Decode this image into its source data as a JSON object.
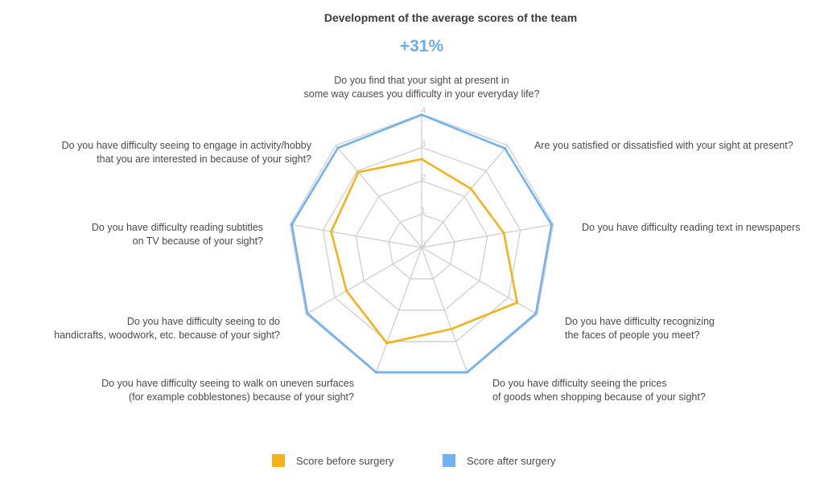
{
  "chart_data": {
    "type": "radar",
    "title": "Development of the average scores of the team",
    "subtitle": "+31%",
    "axis_max": 4,
    "ticks": [
      "0",
      "1",
      "2",
      "3",
      "4"
    ],
    "axes": [
      [
        "Do you find that your sight at present in",
        "some way causes you difficulty in your everyday life?"
      ],
      [
        "Are you satisfied or dissatisfied with your sight at present?"
      ],
      [
        "Do you have difficulty reading text in newspapers"
      ],
      [
        "Do you have difficulty recognizing",
        "the faces of people you meet?"
      ],
      [
        "Do you have difficulty seeing the prices",
        "of goods when shopping because of your sight?"
      ],
      [
        "Do you have difficulty seeing to walk on uneven surfaces",
        "(for example cobblestones) because of your sight?"
      ],
      [
        "Do you have difficulty seeing to do",
        "handicrafts, woodwork, etc. because of your sight?"
      ],
      [
        "Do you have difficulty reading subtitles",
        "on TV because of your sight?"
      ],
      [
        "Do you have difficulty seeing to engage in activity/hobby",
        "that you are interested in because of your sight?"
      ]
    ],
    "series": [
      {
        "name": "Score before surgery",
        "color": "#f5b21b",
        "values": [
          2.65,
          2.3,
          2.5,
          3.3,
          2.6,
          3.05,
          2.6,
          2.75,
          2.95
        ]
      },
      {
        "name": "Score after surgery",
        "color": "#72b1f2",
        "values": [
          3.98,
          3.88,
          3.95,
          3.95,
          3.98,
          3.98,
          3.95,
          3.95,
          3.9
        ]
      }
    ]
  },
  "legend": [
    {
      "label": "Score before surgery",
      "color": "#f5b21b"
    },
    {
      "label": "Score after surgery",
      "color": "#72b1f2"
    }
  ]
}
